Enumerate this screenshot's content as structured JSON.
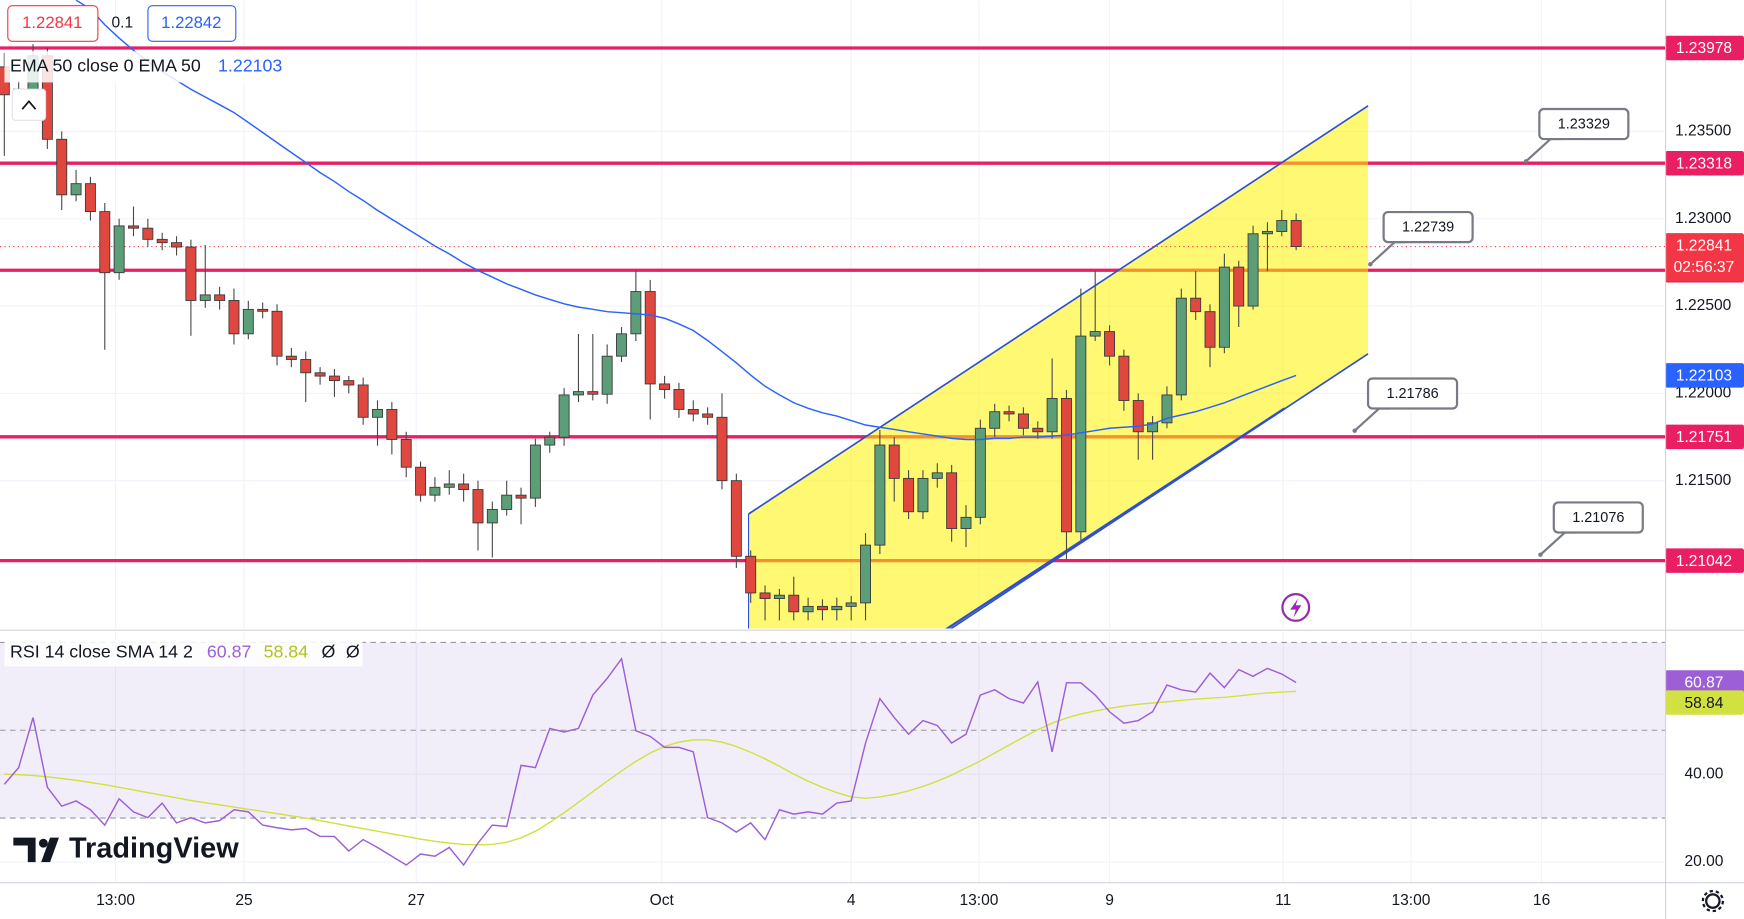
{
  "chart_data": [
    {
      "type": "candlestick",
      "header": {
        "bid": 1.22841,
        "spread": 0.1,
        "ask": 1.22842
      },
      "watermark": "TradingView",
      "up_color": "#5b9e78",
      "down_color": "#e0473f",
      "wick_color": "#4a4a4a",
      "xlim": [
        -0.3,
        115.7
      ],
      "xticks": [
        {
          "value": 7.75,
          "label": "13:00"
        },
        {
          "value": 16.7,
          "label": "25"
        },
        {
          "value": 28.7,
          "label": "27"
        },
        {
          "value": 45.8,
          "label": "Oct"
        },
        {
          "value": 59.0,
          "label": "4"
        },
        {
          "value": 67.9,
          "label": "13:00"
        },
        {
          "value": 77.0,
          "label": "9"
        },
        {
          "value": 89.1,
          "label": "11"
        },
        {
          "value": 98.0,
          "label": "13:00"
        },
        {
          "value": 107.1,
          "label": "16"
        }
      ],
      "ylim": [
        1.20653,
        1.24252
      ],
      "yticks": [
        {
          "value": 1.235,
          "label": "1.23500"
        },
        {
          "value": 1.23,
          "label": "1.23000"
        },
        {
          "value": 1.225,
          "label": "1.22500"
        },
        {
          "value": 1.22,
          "label": "1.22000"
        },
        {
          "value": 1.215,
          "label": "1.21500"
        }
      ],
      "grid": true,
      "open": [
        1.2387,
        1.2371,
        1.23742,
        1.23933,
        1.23455,
        1.23137,
        1.23201,
        1.23041,
        1.22691,
        1.22959,
        1.22946,
        1.22882,
        1.22863,
        1.22838,
        1.22532,
        1.22564,
        1.22532,
        1.22341,
        1.22481,
        1.2247,
        1.22213,
        1.22194,
        1.22118,
        1.22099,
        1.22073,
        1.22048,
        1.21863,
        1.21908,
        1.21736,
        1.21577,
        1.21417,
        1.21462,
        1.21481,
        1.21449,
        1.21258,
        1.21335,
        1.21417,
        1.214,
        1.21704,
        1.21749,
        1.21991,
        1.2201,
        1.21995,
        1.22213,
        1.22341,
        1.22583,
        1.22054,
        1.22022,
        1.21908,
        1.21882,
        1.21863,
        1.215,
        1.21067,
        1.20857,
        1.20825,
        1.20844,
        1.20749,
        1.2078,
        1.20761,
        1.2078,
        1.208,
        1.21131,
        1.21704,
        1.21513,
        1.21322,
        1.21513,
        1.21545,
        1.21226,
        1.2129,
        1.218,
        1.21895,
        1.21882,
        1.218,
        1.2178,
        1.21971,
        1.21207,
        1.22328,
        1.22354,
        1.22213,
        1.21959,
        1.2178,
        1.21831,
        1.21991,
        1.22545,
        1.22468,
        1.22264,
        1.22723,
        1.225,
        1.22914,
        1.22927,
        1.2299
      ],
      "high": [
        1.2395,
        1.2379,
        1.24,
        1.2398,
        1.235,
        1.2328,
        1.2324,
        1.2309,
        1.23,
        1.2307,
        1.23,
        1.2292,
        1.229,
        1.2288,
        1.2285,
        1.2261,
        1.226,
        1.2253,
        1.2252,
        1.2251,
        1.2226,
        1.2224,
        1.2215,
        1.2214,
        1.221,
        1.2209,
        1.2196,
        1.2195,
        1.2178,
        1.2161,
        1.2152,
        1.2156,
        1.2154,
        1.215,
        1.2138,
        1.215,
        1.2146,
        1.2174,
        1.2178,
        1.2203,
        1.2234,
        1.2234,
        1.2228,
        1.2238,
        1.227,
        1.2265,
        1.221,
        1.2206,
        1.2196,
        1.2192,
        1.22,
        1.2154,
        1.211,
        1.209,
        1.2088,
        1.2095,
        1.2083,
        1.2082,
        1.2083,
        1.2084,
        1.212,
        1.2179,
        1.2175,
        1.2156,
        1.2156,
        1.216,
        1.2159,
        1.2136,
        1.2185,
        1.2194,
        1.2193,
        1.2192,
        1.2184,
        1.222,
        1.2202,
        1.226,
        1.227,
        1.2239,
        1.2225,
        1.22,
        1.2187,
        1.2204,
        1.226,
        1.227,
        1.2251,
        1.228,
        1.2276,
        1.2296,
        1.2298,
        1.2305,
        1.2303
      ],
      "low": [
        1.2336,
        1.2366,
        1.237,
        1.234,
        1.2305,
        1.231,
        1.2299,
        1.2225,
        1.2265,
        1.229,
        1.2284,
        1.2282,
        1.2279,
        1.2233,
        1.2249,
        1.2248,
        1.2228,
        1.2231,
        1.2243,
        1.2216,
        1.2215,
        1.2195,
        1.2205,
        1.2198,
        1.22,
        1.2182,
        1.217,
        1.2165,
        1.2152,
        1.2138,
        1.2138,
        1.2142,
        1.2138,
        1.211,
        1.2106,
        1.213,
        1.2125,
        1.2135,
        1.2166,
        1.217,
        1.2195,
        1.2196,
        1.2194,
        1.2218,
        1.223,
        1.2185,
        1.2197,
        1.2186,
        1.2184,
        1.2182,
        1.2145,
        1.21,
        1.208,
        1.207,
        1.207,
        1.207,
        1.207,
        1.207,
        1.207,
        1.207,
        1.207,
        1.2108,
        1.2138,
        1.2128,
        1.2128,
        1.2146,
        1.2115,
        1.2112,
        1.2125,
        1.2175,
        1.2184,
        1.2176,
        1.2174,
        1.2174,
        1.2105,
        1.2116,
        1.223,
        1.2216,
        1.219,
        1.2162,
        1.2162,
        1.218,
        1.2196,
        1.2242,
        1.2215,
        1.2223,
        1.2238,
        1.2248,
        1.227,
        1.229,
        1.2282
      ],
      "close": [
        1.2371,
        1.23742,
        1.23933,
        1.23455,
        1.23137,
        1.23201,
        1.23041,
        1.22691,
        1.22959,
        1.22946,
        1.22882,
        1.22863,
        1.22838,
        1.22532,
        1.22564,
        1.22532,
        1.22341,
        1.22481,
        1.2247,
        1.22213,
        1.22194,
        1.22118,
        1.22099,
        1.22073,
        1.22048,
        1.21863,
        1.21908,
        1.21736,
        1.21577,
        1.21417,
        1.21462,
        1.21481,
        1.21449,
        1.21258,
        1.21335,
        1.21417,
        1.214,
        1.21704,
        1.21749,
        1.21991,
        1.2201,
        1.21995,
        1.22213,
        1.22341,
        1.22583,
        1.22054,
        1.22022,
        1.21908,
        1.21882,
        1.21863,
        1.215,
        1.21067,
        1.20857,
        1.20825,
        1.20844,
        1.20749,
        1.2078,
        1.20761,
        1.2078,
        1.208,
        1.21131,
        1.21704,
        1.21513,
        1.21322,
        1.21513,
        1.21545,
        1.21226,
        1.2129,
        1.218,
        1.21895,
        1.21882,
        1.218,
        1.2178,
        1.21971,
        1.21207,
        1.22328,
        1.22354,
        1.22213,
        1.21959,
        1.2178,
        1.21831,
        1.21991,
        1.22545,
        1.22468,
        1.22264,
        1.22723,
        1.225,
        1.22914,
        1.22927,
        1.2299,
        1.22841
      ],
      "countdown": "02:56:37",
      "last_color": "#f23645",
      "ema": {
        "name": "EMA 50 close 0 EMA 50",
        "color": "#2962ff",
        "values": [
          null,
          null,
          null,
          null,
          null,
          1.24252,
          1.24201,
          1.24111,
          1.24035,
          1.23965,
          1.23901,
          1.23844,
          1.23793,
          1.23742,
          1.23697,
          1.23653,
          1.23608,
          1.23551,
          1.23494,
          1.23436,
          1.23379,
          1.23322,
          1.23264,
          1.23213,
          1.23156,
          1.23105,
          1.23048,
          1.22997,
          1.22946,
          1.22895,
          1.22844,
          1.22799,
          1.22748,
          1.22704,
          1.22666,
          1.22627,
          1.22596,
          1.22564,
          1.22538,
          1.22513,
          1.22494,
          1.22481,
          1.22468,
          1.22462,
          1.22455,
          1.22449,
          1.2243,
          1.22398,
          1.2236,
          1.22303,
          1.22239,
          1.22175,
          1.22105,
          1.22041,
          1.21991,
          1.21946,
          1.21914,
          1.21889,
          1.2187,
          1.21844,
          1.21819,
          1.21806,
          1.21793,
          1.2178,
          1.21768,
          1.21755,
          1.21742,
          1.21736,
          1.21736,
          1.21742,
          1.21742,
          1.21749,
          1.21749,
          1.21755,
          1.21761,
          1.21774,
          1.21787,
          1.218,
          1.21806,
          1.21812,
          1.21825,
          1.21857,
          1.21876,
          1.21895,
          1.2192,
          1.21946,
          1.21978,
          1.2201,
          1.22041,
          1.22073,
          1.22103
        ]
      },
      "levels": [
        1.23978,
        1.23318,
        1.22705,
        1.21751,
        1.21042
      ],
      "level_color": "#e91e63",
      "annotations": [
        1.23329,
        1.22739,
        1.21786,
        1.21076
      ]
    },
    {
      "type": "line",
      "legend": "RSI 14 close SMA 14 2",
      "extras": [
        "Ø",
        "Ø"
      ],
      "ylim": [
        15.4,
        72.4
      ],
      "yticks": [
        {
          "value": 40,
          "label": "40.00"
        },
        {
          "value": 20,
          "label": "20.00"
        }
      ],
      "levels": [
        70,
        50,
        30
      ],
      "series": [
        {
          "color": "#9c5fd6",
          "values": [
            37.7,
            41.5,
            52.9,
            37.0,
            32.7,
            33.9,
            31.9,
            28.4,
            34.4,
            31.4,
            30.1,
            33.4,
            28.9,
            30.1,
            28.9,
            29.4,
            31.9,
            31.4,
            28.4,
            27.8,
            27.3,
            27.6,
            25.8,
            25.8,
            22.5,
            25.1,
            23.3,
            21.3,
            19.3,
            21.8,
            21.3,
            23.3,
            19.3,
            24.3,
            28.4,
            28.1,
            42.0,
            41.5,
            50.4,
            49.6,
            50.4,
            58.0,
            61.8,
            66.3,
            49.9,
            48.6,
            46.1,
            46.1,
            45.1,
            30.1,
            28.9,
            26.8,
            28.9,
            25.1,
            31.9,
            30.9,
            31.4,
            30.9,
            33.4,
            33.9,
            47.1,
            57.2,
            52.9,
            49.1,
            52.2,
            51.1,
            47.1,
            49.1,
            58.0,
            59.2,
            57.2,
            56.2,
            61.0,
            45.1,
            60.8,
            60.8,
            58.0,
            54.2,
            51.6,
            52.2,
            54.2,
            60.3,
            59.2,
            58.7,
            63.0,
            59.7,
            63.8,
            62.3,
            64.1,
            62.8,
            60.87
          ]
        },
        {
          "color": "#d2e142",
          "values": [
            40.0,
            39.9,
            39.7,
            39.4,
            39.0,
            38.6,
            38.1,
            37.6,
            37.0,
            36.4,
            35.8,
            35.2,
            34.6,
            34.0,
            33.5,
            33.0,
            32.5,
            32.0,
            31.5,
            31.0,
            30.5,
            30.0,
            29.4,
            28.8,
            28.2,
            27.6,
            27.0,
            26.4,
            25.8,
            25.2,
            24.7,
            24.3,
            24.0,
            23.9,
            24.0,
            24.5,
            25.5,
            27.0,
            29.0,
            31.2,
            33.6,
            36.0,
            38.4,
            40.7,
            42.9,
            44.8,
            46.3,
            47.3,
            47.8,
            47.8,
            47.3,
            46.3,
            45.0,
            43.5,
            41.8,
            40.0,
            38.4,
            37.0,
            35.8,
            34.8,
            34.5,
            34.8,
            35.4,
            36.2,
            37.2,
            38.4,
            39.8,
            41.4,
            43.0,
            44.8,
            46.6,
            48.4,
            50.1,
            51.6,
            52.8,
            53.7,
            54.4,
            55.0,
            55.5,
            55.9,
            56.2,
            56.5,
            56.8,
            57.1,
            57.3,
            57.5,
            57.8,
            58.2,
            58.5,
            58.7,
            58.84
          ]
        }
      ]
    }
  ]
}
